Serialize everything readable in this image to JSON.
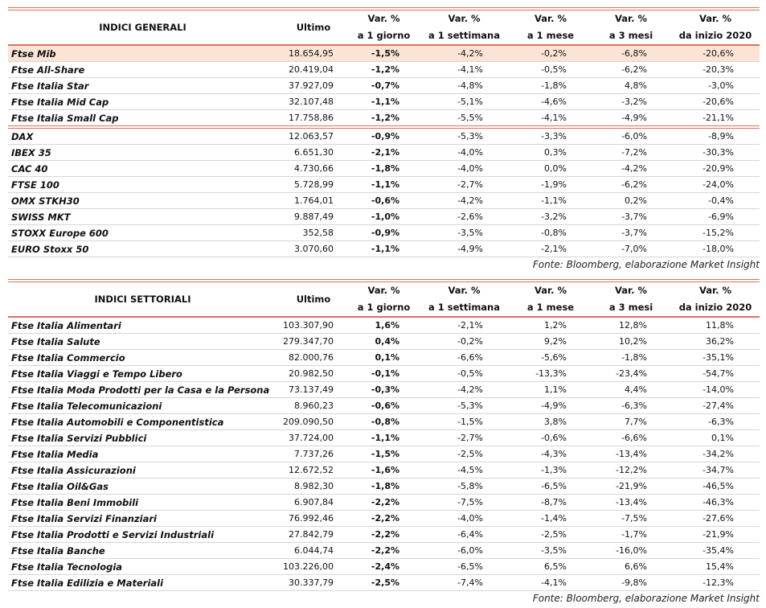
{
  "tables": [
    {
      "headers": [
        [
          "INDICI GENERALI"
        ],
        [
          "Ultimo"
        ],
        [
          "Var. %",
          "a 1 giorno"
        ],
        [
          "Var. %",
          "a 1 settimana"
        ],
        [
          "Var. %",
          "a 1 mese"
        ],
        [
          "Var. %",
          "a 3 mesi"
        ],
        [
          "Var. %",
          "da inizio 2020"
        ]
      ],
      "groups": [
        [
          [
            "Ftse Mib",
            "18.654,95",
            "-1,5%",
            "-4,2%",
            "-0,2%",
            "-6,8%",
            "-20,6%"
          ],
          [
            "Ftse All-Share",
            "20.419,04",
            "-1,2%",
            "-4,1%",
            "-0,5%",
            "-6,2%",
            "-20,3%"
          ],
          [
            "Ftse Italia Star",
            "37.927,09",
            "-0,7%",
            "-4,8%",
            "-1,8%",
            "4,8%",
            "-3,0%"
          ],
          [
            "Ftse Italia Mid Cap",
            "32.107,48",
            "-1,1%",
            "-5,1%",
            "-4,6%",
            "-3,2%",
            "-20,6%"
          ],
          [
            "Ftse Italia Small Cap",
            "17.758,86",
            "-1,2%",
            "-5,5%",
            "-4,1%",
            "-4,9%",
            "-21,1%"
          ]
        ],
        [
          [
            "DAX",
            "12.063,57",
            "-0,9%",
            "-5,3%",
            "-3,3%",
            "-6,0%",
            "-8,9%"
          ],
          [
            "IBEX 35",
            "6.651,30",
            "-2,1%",
            "-4,0%",
            "0,3%",
            "-7,2%",
            "-30,3%"
          ],
          [
            "CAC 40",
            "4.730,66",
            "-1,8%",
            "-4,0%",
            "0,0%",
            "-4,2%",
            "-20,9%"
          ],
          [
            "FTSE 100",
            "5.728,99",
            "-1,1%",
            "-2,7%",
            "-1,9%",
            "-6,2%",
            "-24,0%"
          ],
          [
            "OMX STKH30",
            "1.764,01",
            "-0,6%",
            "-4,2%",
            "-1,1%",
            "0,2%",
            "-0,4%"
          ],
          [
            "SWISS MKT",
            "9.887,49",
            "-1,0%",
            "-2,6%",
            "-3,2%",
            "-3,7%",
            "-6,9%"
          ],
          [
            "STOXX Europe 600",
            "352,58",
            "-0,9%",
            "-3,5%",
            "-0,8%",
            "-3,7%",
            "-15,2%"
          ],
          [
            "EURO Stoxx 50",
            "3.070,60",
            "-1,1%",
            "-4,9%",
            "-2,1%",
            "-7,0%",
            "-18,0%"
          ]
        ]
      ],
      "source": "Fonte: Bloomberg, elaborazione Market Insight"
    },
    {
      "headers": [
        [
          "INDICI SETTORIALI"
        ],
        [
          "Ultimo"
        ],
        [
          "Var. %",
          "a 1 giorno"
        ],
        [
          "Var. %",
          "a 1 settimana"
        ],
        [
          "Var. %",
          "a 1 mese"
        ],
        [
          "Var. %",
          "a 3 mesi"
        ],
        [
          "Var. %",
          "da inizio 2020"
        ]
      ],
      "groups": [
        [
          [
            "Ftse Italia Alimentari",
            "103.307,90",
            "1,6%",
            "-2,1%",
            "1,2%",
            "12,8%",
            "11,8%"
          ],
          [
            "Ftse Italia Salute",
            "279.347,70",
            "0,4%",
            "-0,2%",
            "9,2%",
            "10,2%",
            "36,2%"
          ],
          [
            "Ftse Italia Commercio",
            "82.000,76",
            "0,1%",
            "-6,6%",
            "-5,6%",
            "-1,8%",
            "-35,1%"
          ],
          [
            "Ftse Italia Viaggi e Tempo Libero",
            "20.982,50",
            "-0,1%",
            "-0,5%",
            "-13,3%",
            "-23,4%",
            "-54,7%"
          ],
          [
            "Ftse Italia Moda Prodotti per la Casa e la Persona",
            "73.137,49",
            "-0,3%",
            "-4,2%",
            "1,1%",
            "4,4%",
            "-14,0%"
          ],
          [
            "Ftse Italia Telecomunicazioni",
            "8.960,23",
            "-0,6%",
            "-5,3%",
            "-4,9%",
            "-6,3%",
            "-27,4%"
          ],
          [
            "Ftse Italia Automobili e Componentistica",
            "209.090,50",
            "-0,8%",
            "-1,5%",
            "3,8%",
            "7,7%",
            "-6,3%"
          ],
          [
            "Ftse Italia Servizi Pubblici",
            "37.724,00",
            "-1,1%",
            "-2,7%",
            "-0,6%",
            "-6,6%",
            "0,1%"
          ],
          [
            "Ftse Italia Media",
            "7.737,26",
            "-1,5%",
            "-2,5%",
            "-4,3%",
            "-13,4%",
            "-34,2%"
          ],
          [
            "Ftse Italia Assicurazioni",
            "12.672,52",
            "-1,6%",
            "-4,5%",
            "-1,3%",
            "-12,2%",
            "-34,7%"
          ],
          [
            "Ftse Italia Oil&Gas",
            "8.982,30",
            "-1,8%",
            "-5,8%",
            "-6,5%",
            "-21,9%",
            "-46,5%"
          ],
          [
            "Ftse Italia Beni Immobili",
            "6.907,84",
            "-2,2%",
            "-7,5%",
            "-8,7%",
            "-13,4%",
            "-46,3%"
          ],
          [
            "Ftse Italia Servizi Finanziari",
            "76.992,46",
            "-2,2%",
            "-4,0%",
            "-1,4%",
            "-7,5%",
            "-27,6%"
          ],
          [
            "Ftse Italia Prodotti e Servizi Industriali",
            "27.842,79",
            "-2,2%",
            "-6,4%",
            "-2,5%",
            "-1,7%",
            "-21,9%"
          ],
          [
            "Ftse Italia Banche",
            "6.044,74",
            "-2,2%",
            "-6,0%",
            "-3,5%",
            "-16,0%",
            "-35,4%"
          ],
          [
            "Ftse Italia Tecnologia",
            "103.226,00",
            "-2,4%",
            "-6,5%",
            "6,5%",
            "6,6%",
            "15,4%"
          ],
          [
            "Ftse Italia Edilizia e Materiali",
            "30.337,79",
            "-2,5%",
            "-7,4%",
            "-4,1%",
            "-9,8%",
            "-12,3%"
          ]
        ]
      ],
      "source": "Fonte: Bloomberg, elaborazione Market Insight"
    }
  ]
}
